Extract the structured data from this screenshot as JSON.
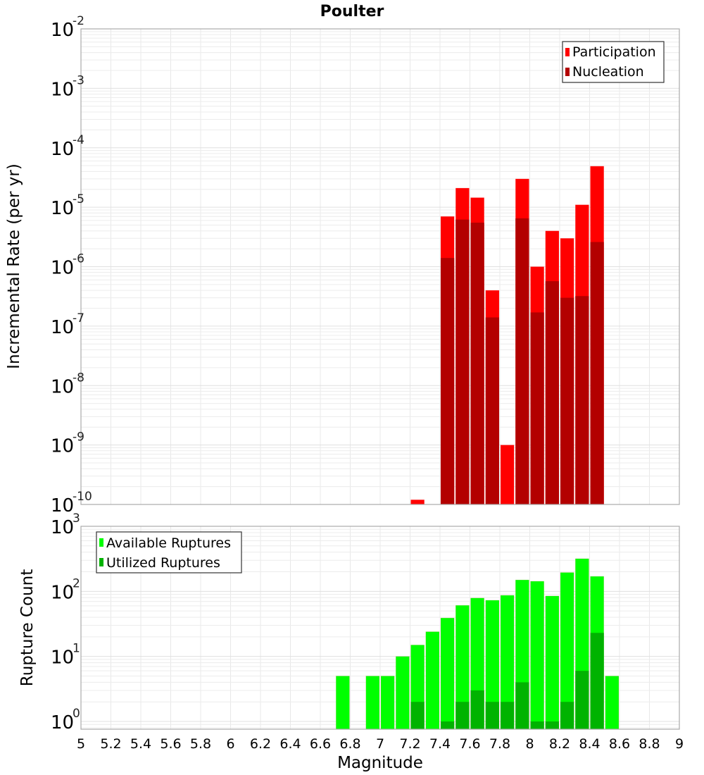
{
  "chart_data": [
    {
      "type": "bar",
      "title": "Poulter",
      "xlabel": "Magnitude",
      "ylabel": "Incremental Rate (per yr)",
      "yscale": "log",
      "xlim": [
        5,
        9
      ],
      "ylim": [
        1e-10,
        0.01
      ],
      "grid": true,
      "legend_position": "top-right",
      "y_tick_exponents": [
        "-2",
        "-3",
        "-4",
        "-5",
        "-6",
        "-7",
        "-8",
        "-9",
        "-10"
      ],
      "bar_width": 0.1,
      "series": [
        {
          "name": "Participation",
          "color": "#ff0000",
          "x": [
            7.25,
            7.45,
            7.55,
            7.65,
            7.75,
            7.85,
            7.95,
            8.05,
            8.15,
            8.25,
            8.35,
            8.45
          ],
          "values": [
            1.2e-10,
            7e-06,
            2.1e-05,
            1.45e-05,
            4e-07,
            1e-09,
            3e-05,
            1e-06,
            4e-06,
            3e-06,
            1.1e-05,
            4.9e-05
          ]
        },
        {
          "name": "Nucleation",
          "color": "#b30000",
          "x": [
            7.45,
            7.55,
            7.65,
            7.75,
            7.95,
            8.05,
            8.15,
            8.25,
            8.35,
            8.45
          ],
          "values": [
            1.4e-06,
            6.2e-06,
            5.5e-06,
            1.4e-07,
            6.5e-06,
            1.7e-07,
            5.7e-07,
            3e-07,
            3.2e-07,
            2.6e-06
          ]
        }
      ]
    },
    {
      "type": "bar",
      "title": "",
      "xlabel": "Magnitude",
      "ylabel": "Rupture Count",
      "yscale": "log",
      "xlim": [
        5,
        9
      ],
      "ylim": [
        0.76,
        1000
      ],
      "grid": true,
      "legend_position": "top-left",
      "y_tick_exponents": [
        "3",
        "2",
        "1",
        "0"
      ],
      "x_ticks": [
        "5",
        "5.2",
        "5.4",
        "5.6",
        "5.8",
        "6",
        "6.2",
        "6.4",
        "6.6",
        "6.8",
        "7",
        "7.2",
        "7.4",
        "7.6",
        "7.8",
        "8",
        "8.2",
        "8.4",
        "8.6",
        "8.8",
        "9"
      ],
      "bar_width": 0.1,
      "series": [
        {
          "name": "Available Ruptures",
          "color": "#00ff00",
          "x": [
            6.75,
            6.95,
            7.05,
            7.15,
            7.25,
            7.35,
            7.45,
            7.55,
            7.65,
            7.75,
            7.85,
            7.95,
            8.05,
            8.15,
            8.25,
            8.35,
            8.45,
            8.55
          ],
          "values": [
            5,
            5,
            5,
            10,
            15,
            24,
            39,
            61,
            79,
            73,
            87,
            150,
            143,
            85,
            195,
            318,
            170,
            5
          ]
        },
        {
          "name": "Utilized Ruptures",
          "color": "#00b300",
          "x": [
            7.25,
            7.45,
            7.55,
            7.65,
            7.75,
            7.85,
            7.95,
            8.05,
            8.15,
            8.25,
            8.35,
            8.45
          ],
          "values": [
            2,
            1,
            2,
            3,
            2,
            2,
            4,
            1,
            1,
            2,
            6,
            23
          ]
        }
      ]
    }
  ],
  "tick_base": "10"
}
